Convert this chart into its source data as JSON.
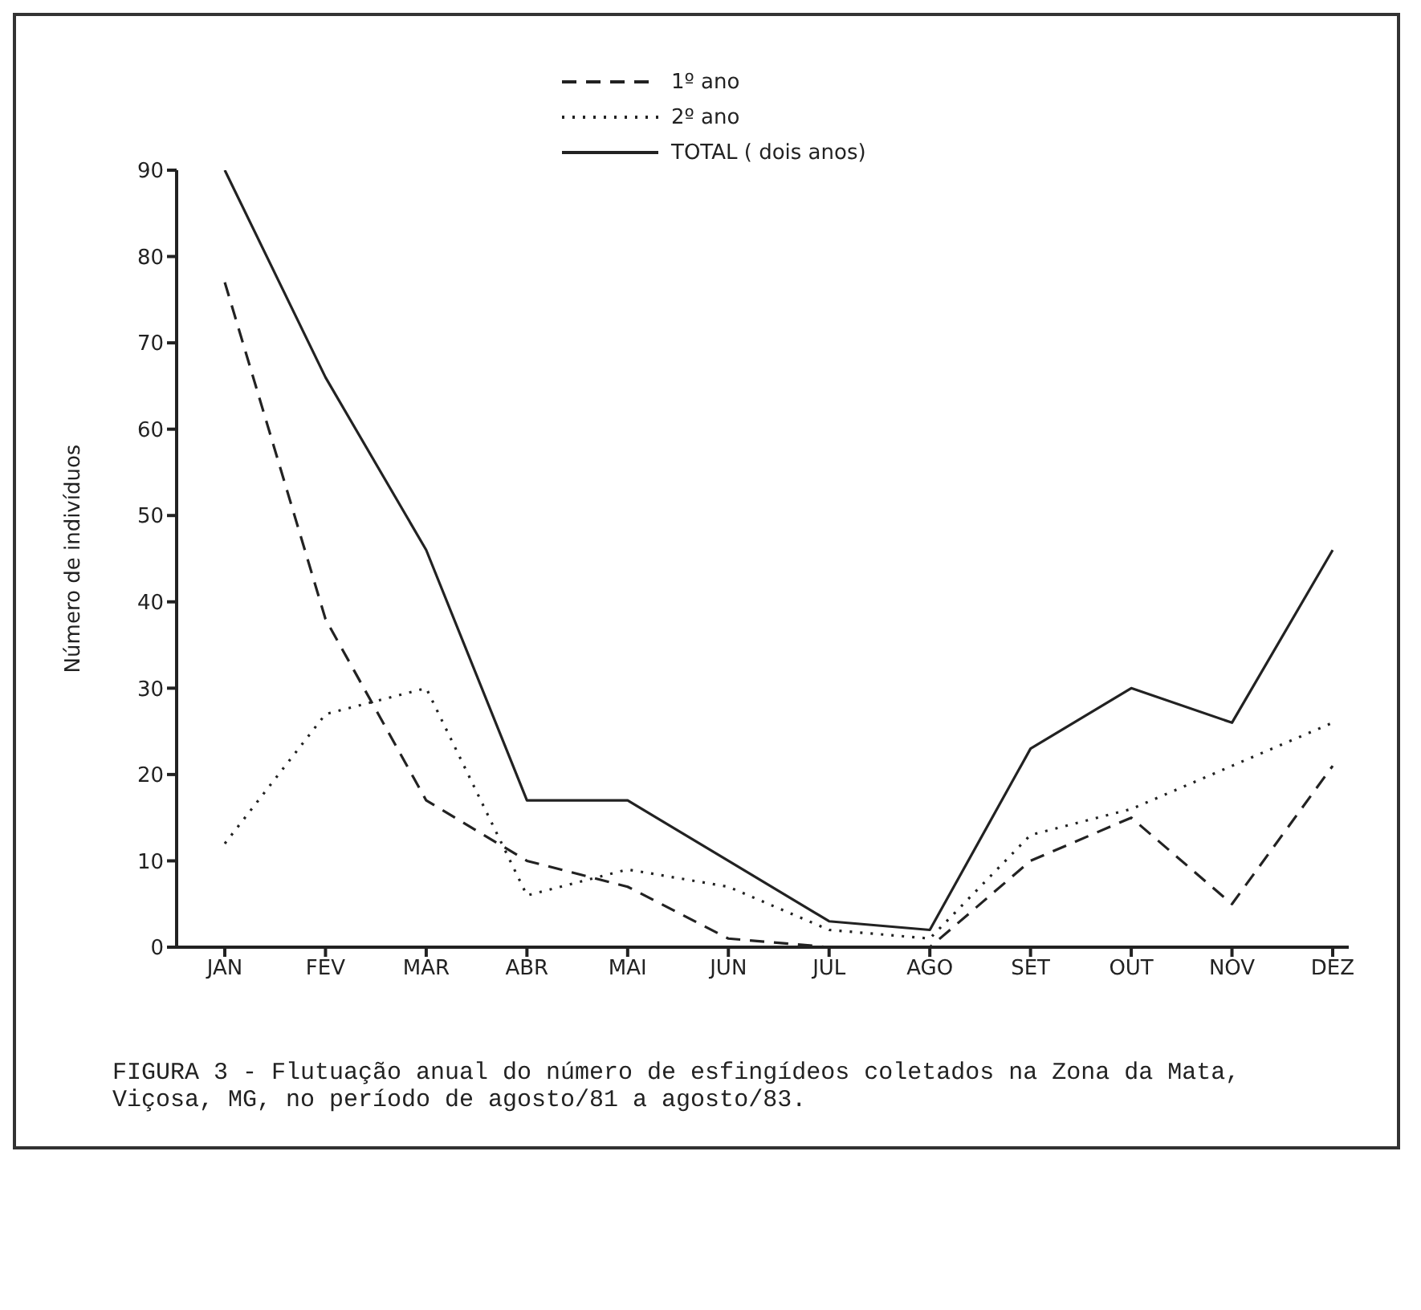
{
  "chart_data": {
    "type": "line",
    "ylabel": "Número de indivíduos",
    "categories": [
      "JAN",
      "FEV",
      "MAR",
      "ABR",
      "MAI",
      "JUN",
      "JUL",
      "AGO",
      "SET",
      "OUT",
      "NOV",
      "DEZ"
    ],
    "series": [
      {
        "name": "1º ano",
        "color": "#222222",
        "line_style": "dashed",
        "values": [
          77,
          38,
          17,
          10,
          7,
          1,
          0,
          0,
          10,
          15,
          5,
          21
        ]
      },
      {
        "name": "2º ano",
        "color": "#222222",
        "line_style": "dotted",
        "values": [
          12,
          27,
          30,
          6,
          9,
          7,
          2,
          1,
          13,
          16,
          21,
          26
        ]
      },
      {
        "name": "TOTAL ( dois anos)",
        "color": "#222222",
        "line_style": "solid",
        "values": [
          90,
          66,
          46,
          17,
          17,
          10,
          3,
          2,
          23,
          30,
          26,
          46
        ]
      }
    ],
    "ylim": [
      0,
      90
    ],
    "yticks": [
      0,
      10,
      20,
      30,
      40,
      50,
      60,
      70,
      80,
      90
    ],
    "grid": false,
    "legend": "top",
    "marker": "none",
    "annotations": [
      "FIGURA 3 - Flutuação anual do número de esfingídeos coletados na Zona da Mata, Viçosa, MG, no período de agosto/81 a agosto/83."
    ]
  }
}
